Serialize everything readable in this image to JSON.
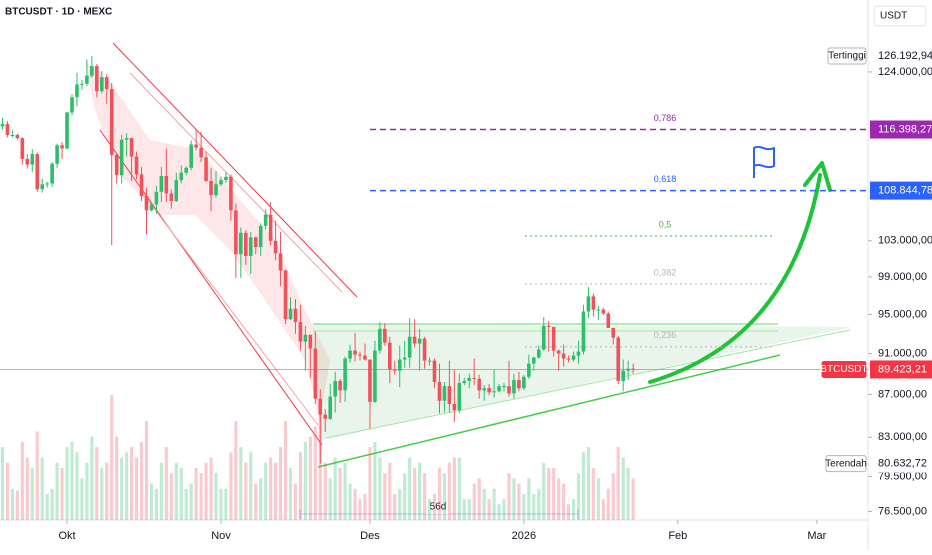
{
  "chart_data": {
    "type": "candlestick",
    "title": "BTCUSDT · 1D · MEXC",
    "currency": "USDT",
    "up_color": "#2ebd6b",
    "down_color": "#f0525c",
    "log_scale": true,
    "grid": false,
    "ylim": [
      75790,
      134200
    ],
    "yticks": [
      {
        "value": 124000,
        "label": "124.000,00"
      },
      {
        "value": 103000,
        "label": "103.000,00"
      },
      {
        "value": 99000,
        "label": "99.000,00"
      },
      {
        "value": 95000,
        "label": "95.000,00"
      },
      {
        "value": 91000,
        "label": "91.000,00"
      },
      {
        "value": 87000,
        "label": "87.000,00"
      },
      {
        "value": 83000,
        "label": "83.000,00"
      },
      {
        "value": 79500,
        "label": "79.500,00"
      },
      {
        "value": 76500,
        "label": "76.500,00"
      }
    ],
    "xlim": [
      -0.5,
      174.3
    ],
    "xticks": [
      {
        "value": 13,
        "label": "Okt"
      },
      {
        "value": 44,
        "label": "Nov"
      },
      {
        "value": 74,
        "label": "Des"
      },
      {
        "value": 105,
        "label": "2026"
      },
      {
        "value": 136,
        "label": "Feb"
      },
      {
        "value": 164,
        "label": "Mar"
      }
    ],
    "ohlc": [
      [
        116800,
        117900,
        116400,
        117100
      ],
      [
        117100,
        117500,
        115400,
        115700
      ],
      [
        115700,
        116300,
        115400,
        115700
      ],
      [
        115700,
        115900,
        115100,
        115300
      ],
      [
        115300,
        115400,
        112000,
        112700
      ],
      [
        112700,
        113300,
        111500,
        112000
      ],
      [
        112000,
        113900,
        111100,
        113300
      ],
      [
        113300,
        113500,
        108700,
        109000
      ],
      [
        109000,
        110300,
        108600,
        109600
      ],
      [
        109600,
        109900,
        109200,
        109700
      ],
      [
        109700,
        112300,
        109300,
        112100
      ],
      [
        112100,
        114600,
        111600,
        114400
      ],
      [
        114400,
        114800,
        112700,
        114000
      ],
      [
        114000,
        118700,
        113900,
        118600
      ],
      [
        118600,
        121000,
        118200,
        120600
      ],
      [
        120600,
        123900,
        119400,
        122300
      ],
      [
        122300,
        122900,
        121600,
        122400
      ],
      [
        122400,
        125700,
        122100,
        123500
      ],
      [
        123500,
        126192.94,
        123200,
        124800
      ],
      [
        124800,
        125100,
        120600,
        121400
      ],
      [
        121400,
        124100,
        121100,
        123300
      ],
      [
        123300,
        123700,
        119700,
        121700
      ],
      [
        121700,
        122500,
        102500,
        113200
      ],
      [
        113200,
        113400,
        109700,
        110700
      ],
      [
        110700,
        115700,
        109700,
        115100
      ],
      [
        115100,
        115900,
        113000,
        115300
      ],
      [
        115300,
        115400,
        110000,
        113000
      ],
      [
        113000,
        113600,
        110200,
        110800
      ],
      [
        110800,
        111700,
        107600,
        108200
      ],
      [
        108200,
        109200,
        103700,
        106500
      ],
      [
        106500,
        107500,
        106400,
        107200
      ],
      [
        107200,
        109400,
        106100,
        108700
      ],
      [
        108700,
        111700,
        107500,
        110600
      ],
      [
        110600,
        114000,
        107500,
        108500
      ],
      [
        108500,
        109000,
        106700,
        107600
      ],
      [
        107600,
        111000,
        107500,
        110100
      ],
      [
        110100,
        111900,
        109700,
        111000
      ],
      [
        111000,
        111800,
        110700,
        111600
      ],
      [
        111600,
        115000,
        111300,
        114500
      ],
      [
        114500,
        116400,
        113800,
        114100
      ],
      [
        114100,
        116100,
        112300,
        112900
      ],
      [
        112900,
        113600,
        109900,
        110000
      ],
      [
        110000,
        111600,
        106400,
        108300
      ],
      [
        108300,
        111200,
        108000,
        109600
      ],
      [
        109600,
        110500,
        109400,
        110100
      ],
      [
        110100,
        111100,
        109800,
        110500
      ],
      [
        110500,
        110800,
        105300,
        106500
      ],
      [
        106500,
        107300,
        98900,
        101500
      ],
      [
        101500,
        104500,
        98900,
        103900
      ],
      [
        103900,
        104200,
        100300,
        101300
      ],
      [
        101300,
        104000,
        99300,
        103400
      ],
      [
        103400,
        103500,
        101500,
        102300
      ],
      [
        102300,
        105000,
        101300,
        104700
      ],
      [
        104700,
        106600,
        104300,
        106000
      ],
      [
        106000,
        107500,
        102500,
        103000
      ],
      [
        103000,
        105300,
        100800,
        101600
      ],
      [
        101600,
        104000,
        98000,
        99700
      ],
      [
        99700,
        99800,
        94000,
        94500
      ],
      [
        94500,
        96800,
        94400,
        95600
      ],
      [
        95600,
        96600,
        93000,
        94200
      ],
      [
        94200,
        96000,
        91300,
        92200
      ],
      [
        92200,
        93800,
        89300,
        92900
      ],
      [
        92900,
        92900,
        88600,
        91500
      ],
      [
        91500,
        93200,
        86100,
        86600
      ],
      [
        86600,
        87500,
        80632.72,
        85100
      ],
      [
        85100,
        85600,
        83500,
        84700
      ],
      [
        84700,
        88000,
        84600,
        86800
      ],
      [
        86800,
        89200,
        85300,
        88300
      ],
      [
        88300,
        88500,
        86200,
        87400
      ],
      [
        87400,
        90700,
        86300,
        90500
      ],
      [
        90500,
        91900,
        90100,
        91300
      ],
      [
        91300,
        93100,
        90200,
        90900
      ],
      [
        90900,
        91200,
        90300,
        90800
      ],
      [
        90800,
        92000,
        90300,
        90400
      ],
      [
        90400,
        90400,
        83800,
        86300
      ],
      [
        86300,
        92300,
        86200,
        91300
      ],
      [
        91300,
        94200,
        91000,
        93500
      ],
      [
        93500,
        94100,
        91800,
        92100
      ],
      [
        92100,
        92700,
        88100,
        89400
      ],
      [
        89400,
        90300,
        88900,
        89300
      ],
      [
        89300,
        91800,
        87700,
        90400
      ],
      [
        90400,
        92300,
        89600,
        90600
      ],
      [
        90600,
        94600,
        89600,
        92700
      ],
      [
        92700,
        94500,
        91600,
        92000
      ],
      [
        92000,
        93500,
        89300,
        92500
      ],
      [
        92500,
        92700,
        89500,
        90300
      ],
      [
        90300,
        90600,
        89800,
        90300
      ],
      [
        90300,
        90500,
        87600,
        88200
      ],
      [
        88200,
        90000,
        85200,
        86400
      ],
      [
        86400,
        88200,
        85300,
        87800
      ],
      [
        87800,
        90300,
        85300,
        86100
      ],
      [
        86100,
        89400,
        84400,
        85500
      ],
      [
        85500,
        89000,
        85200,
        88100
      ],
      [
        88100,
        88600,
        87900,
        88300
      ],
      [
        88300,
        89000,
        87600,
        88600
      ],
      [
        88600,
        90500,
        87900,
        88500
      ],
      [
        88500,
        88900,
        86600,
        87400
      ],
      [
        87400,
        87900,
        86400,
        87600
      ],
      [
        87600,
        88000,
        86900,
        87200
      ],
      [
        87200,
        89400,
        86700,
        87300
      ],
      [
        87300,
        88000,
        87200,
        87800
      ],
      [
        87800,
        88100,
        87300,
        87800
      ],
      [
        87800,
        90300,
        86800,
        87100
      ],
      [
        87100,
        89000,
        86600,
        88400
      ],
      [
        88400,
        89200,
        87300,
        87600
      ],
      [
        87600,
        88900,
        87400,
        88700
      ],
      [
        88700,
        90900,
        88500,
        90000
      ],
      [
        90000,
        90700,
        89300,
        90600
      ],
      [
        90600,
        91800,
        90500,
        91400
      ],
      [
        91400,
        94700,
        91300,
        93800
      ],
      [
        93800,
        94300,
        91200,
        93700
      ],
      [
        93700,
        93700,
        90700,
        91300
      ],
      [
        91300,
        91400,
        89300,
        91000
      ],
      [
        91000,
        91900,
        89700,
        90500
      ],
      [
        90500,
        90800,
        90100,
        90400
      ],
      [
        90400,
        91200,
        90200,
        90800
      ],
      [
        90800,
        92300,
        90000,
        91200
      ],
      [
        91200,
        96000,
        90900,
        95300
      ],
      [
        95300,
        97900,
        94600,
        96900
      ],
      [
        96900,
        97200,
        94800,
        95500
      ],
      [
        95500,
        95900,
        94400,
        95500
      ],
      [
        95500,
        95700,
        94900,
        95100
      ],
      [
        95100,
        95300,
        93600,
        93600
      ],
      [
        93600,
        93600,
        91900,
        92600
      ],
      [
        92600,
        92800,
        88000,
        88300
      ],
      [
        88300,
        90400,
        87300,
        89300
      ],
      [
        89300,
        90300,
        88400,
        89500
      ],
      [
        89500,
        90000,
        89000,
        89423.21
      ]
    ],
    "volume": [
      70,
      55,
      30,
      28,
      75,
      60,
      50,
      85,
      60,
      25,
      30,
      55,
      50,
      70,
      75,
      65,
      40,
      55,
      80,
      70,
      50,
      55,
      120,
      80,
      60,
      65,
      70,
      60,
      75,
      95,
      35,
      30,
      55,
      70,
      45,
      55,
      50,
      30,
      35,
      50,
      45,
      55,
      60,
      45,
      30,
      30,
      65,
      95,
      70,
      55,
      65,
      35,
      40,
      55,
      60,
      55,
      70,
      95,
      50,
      35,
      65,
      75,
      80,
      90,
      115,
      55,
      40,
      60,
      50,
      55,
      35,
      30,
      20,
      25,
      70,
      75,
      60,
      45,
      55,
      25,
      30,
      45,
      60,
      50,
      55,
      45,
      20,
      25,
      50,
      45,
      55,
      60,
      60,
      20,
      20,
      35,
      40,
      30,
      20,
      30,
      15,
      20,
      45,
      40,
      35,
      25,
      40,
      25,
      30,
      55,
      50,
      50,
      40,
      35,
      15,
      20,
      45,
      65,
      70,
      50,
      40,
      20,
      30,
      45,
      70,
      60,
      50,
      40
    ],
    "fib": [
      {
        "label": "0,786",
        "price": 116398.27,
        "price_label": "116.398,27",
        "color": "#9c27b0",
        "style": "dashed"
      },
      {
        "label": "0,618",
        "price": 108844.78,
        "price_label": "108.844,78",
        "color": "#2962ff",
        "style": "dashed"
      },
      {
        "label": "0,5",
        "price": 103540,
        "color": "#4caf50",
        "style": "dotted"
      },
      {
        "label": "0,382",
        "price": 98235,
        "color": "#b2b5be",
        "style": "dotted"
      },
      {
        "label": "0,236",
        "price": 91670,
        "color": "#b2b5be",
        "style": "dotted"
      }
    ],
    "high": {
      "label": "Tertinggi",
      "value": 126192.94,
      "value_label": "126.192,94"
    },
    "low": {
      "label": "Terendah",
      "value": 80632.72,
      "value_label": "80.632,72"
    },
    "last": {
      "label": "BTCUSDT",
      "value": 89423.21,
      "value_label": "89.423,21",
      "color": "#f23645"
    },
    "range_label": "56d"
  }
}
